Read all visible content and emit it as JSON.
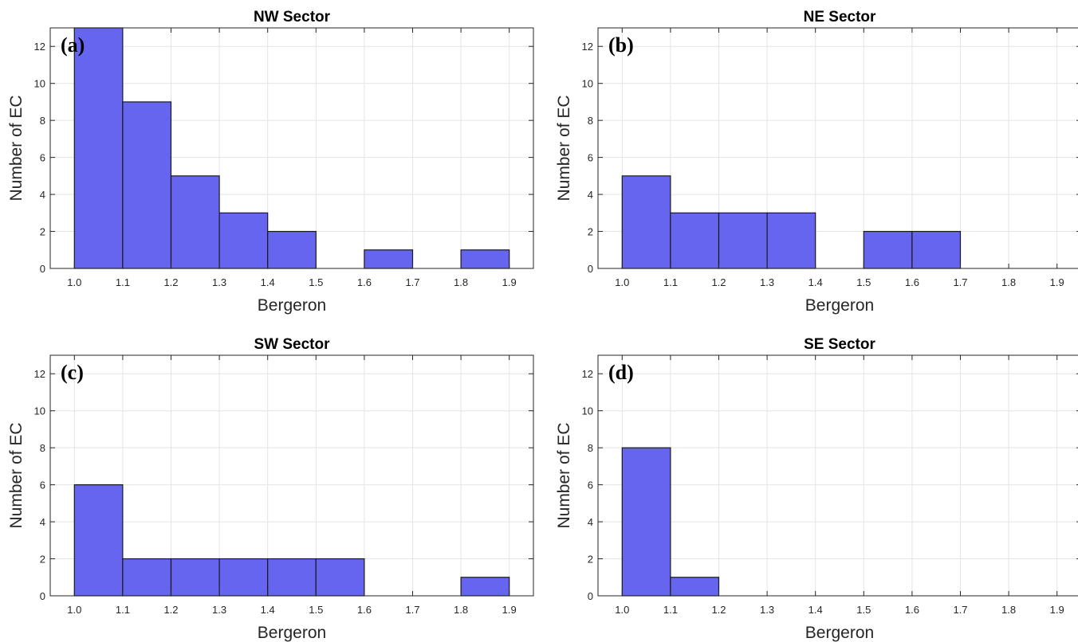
{
  "chart_data": [
    {
      "type": "bar",
      "title": "NW Sector",
      "panel_label": "(a)",
      "xlabel": "Bergeron",
      "ylabel": "Number of EC",
      "xlim": [
        0.95,
        1.95
      ],
      "ylim": [
        0,
        13
      ],
      "xticks": [
        "1.0",
        "1.1",
        "1.2",
        "1.3",
        "1.4",
        "1.5",
        "1.6",
        "1.7",
        "1.8",
        "1.9"
      ],
      "yticks": [
        "0",
        "2",
        "4",
        "6",
        "8",
        "10",
        "12"
      ],
      "bin_edges": [
        1.0,
        1.1,
        1.2,
        1.3,
        1.4,
        1.5,
        1.6,
        1.7,
        1.8,
        1.9
      ],
      "values": [
        13,
        9,
        5,
        3,
        2,
        0,
        1,
        0,
        1
      ],
      "grid": true,
      "bar_color": "#6565F0"
    },
    {
      "type": "bar",
      "title": "NE Sector",
      "panel_label": "(b)",
      "xlabel": "Bergeron",
      "ylabel": "Number of EC",
      "xlim": [
        0.95,
        1.95
      ],
      "ylim": [
        0,
        13
      ],
      "xticks": [
        "1.0",
        "1.1",
        "1.2",
        "1.3",
        "1.4",
        "1.5",
        "1.6",
        "1.7",
        "1.8",
        "1.9"
      ],
      "yticks": [
        "0",
        "2",
        "4",
        "6",
        "8",
        "10",
        "12"
      ],
      "bin_edges": [
        1.0,
        1.1,
        1.2,
        1.3,
        1.4,
        1.5,
        1.6,
        1.7,
        1.8,
        1.9
      ],
      "values": [
        5,
        3,
        3,
        3,
        0,
        2,
        2,
        0,
        0
      ],
      "grid": true,
      "bar_color": "#6565F0"
    },
    {
      "type": "bar",
      "title": "SW Sector",
      "panel_label": "(c)",
      "xlabel": "Bergeron",
      "ylabel": "Number of EC",
      "xlim": [
        0.95,
        1.95
      ],
      "ylim": [
        0,
        13
      ],
      "xticks": [
        "1.0",
        "1.1",
        "1.2",
        "1.3",
        "1.4",
        "1.5",
        "1.6",
        "1.7",
        "1.8",
        "1.9"
      ],
      "yticks": [
        "0",
        "2",
        "4",
        "6",
        "8",
        "10",
        "12"
      ],
      "bin_edges": [
        1.0,
        1.1,
        1.2,
        1.3,
        1.4,
        1.5,
        1.6,
        1.7,
        1.8,
        1.9
      ],
      "values": [
        6,
        2,
        2,
        2,
        2,
        2,
        0,
        0,
        1
      ],
      "grid": true,
      "bar_color": "#6565F0"
    },
    {
      "type": "bar",
      "title": "SE Sector",
      "panel_label": "(d)",
      "xlabel": "Bergeron",
      "ylabel": "Number of EC",
      "xlim": [
        0.95,
        1.95
      ],
      "ylim": [
        0,
        13
      ],
      "xticks": [
        "1.0",
        "1.1",
        "1.2",
        "1.3",
        "1.4",
        "1.5",
        "1.6",
        "1.7",
        "1.8",
        "1.9"
      ],
      "yticks": [
        "0",
        "2",
        "4",
        "6",
        "8",
        "10",
        "12"
      ],
      "bin_edges": [
        1.0,
        1.1,
        1.2,
        1.3,
        1.4,
        1.5,
        1.6,
        1.7,
        1.8,
        1.9
      ],
      "values": [
        8,
        1,
        0,
        0,
        0,
        0,
        0,
        0,
        0
      ],
      "grid": true,
      "bar_color": "#6565F0"
    }
  ]
}
